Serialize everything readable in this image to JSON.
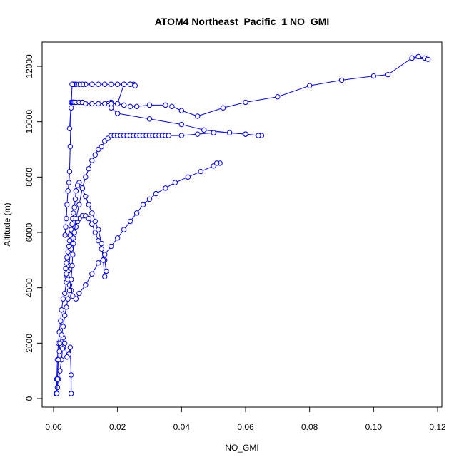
{
  "chart_data": {
    "type": "line",
    "title": "ATOM4 Northeast_Pacific_1 NO_GMI",
    "xlabel": "NO_GMI",
    "ylabel": "Altitude (m)",
    "xlim": [
      0,
      0.12
    ],
    "ylim": [
      0,
      12500
    ],
    "x_ticks": [
      0.0,
      0.02,
      0.04,
      0.06,
      0.08,
      0.1,
      0.12
    ],
    "x_tick_labels": [
      "0.00",
      "0.02",
      "0.04",
      "0.06",
      "0.08",
      "0.10",
      "0.12"
    ],
    "y_ticks": [
      0,
      2000,
      4000,
      6000,
      8000,
      10000,
      12000
    ],
    "y_tick_labels": [
      "0",
      "2000",
      "4000",
      "6000",
      "8000",
      "10000",
      "12000"
    ],
    "grid": false,
    "legend": "none",
    "marker": "open-circle",
    "series_color": "#0000ff",
    "series": [
      {
        "x": [
          0.0055,
          0.0055,
          0.0055,
          0.0052,
          0.0048,
          0.0042,
          0.0035,
          0.003,
          0.0028,
          0.0025,
          0.002,
          0.0015,
          0.0012,
          0.001,
          0.0008,
          0.001,
          0.0012,
          0.0015,
          0.0018,
          0.0022,
          0.0025,
          0.003,
          0.0035,
          0.004,
          0.0042,
          0.0045,
          0.0048,
          0.0052,
          0.0055,
          0.006,
          0.0062,
          0.0065,
          0.007,
          0.0075,
          0.008,
          0.009,
          0.01,
          0.011,
          0.012,
          0.013,
          0.014,
          0.015,
          0.016,
          0.0165,
          0.016,
          0.0155,
          0.015,
          0.014,
          0.013,
          0.012,
          0.011,
          0.01,
          0.009,
          0.008,
          0.0075,
          0.007,
          0.0068,
          0.0065,
          0.0062,
          0.006,
          0.0058,
          0.0055,
          0.0052,
          0.005,
          0.0048,
          0.0045,
          0.0042,
          0.004,
          0.0038,
          0.004,
          0.0045,
          0.005,
          0.0055,
          0.006,
          0.007,
          0.008,
          0.01,
          0.012,
          0.014,
          0.016,
          0.018,
          0.02,
          0.022,
          0.024,
          0.026,
          0.028,
          0.03,
          0.032,
          0.035,
          0.038,
          0.042,
          0.046,
          0.05,
          0.052,
          0.051
        ],
        "y": [
          180,
          180,
          850,
          1850,
          1600,
          1500,
          2000,
          2200,
          1800,
          1400,
          1000,
          700,
          400,
          200,
          180,
          700,
          1400,
          2000,
          2400,
          2800,
          3200,
          3600,
          3800,
          4200,
          4400,
          4600,
          4800,
          5200,
          5400,
          5600,
          5800,
          6000,
          6200,
          6400,
          6500,
          6600,
          6600,
          6500,
          6300,
          6000,
          5700,
          5400,
          5000,
          4600,
          4400,
          5000,
          5600,
          6100,
          6400,
          6700,
          7000,
          7300,
          7600,
          7800,
          7700,
          7500,
          7200,
          6900,
          6700,
          6500,
          6300,
          6100,
          5900,
          5700,
          5500,
          5300,
          5100,
          4900,
          4700,
          4500,
          4300,
          4100,
          3900,
          3700,
          3600,
          3800,
          4100,
          4500,
          4900,
          5200,
          5500,
          5800,
          6100,
          6400,
          6700,
          7000,
          7200,
          7400,
          7600,
          7800,
          8000,
          8200,
          8400,
          8500,
          8500
        ]
      },
      {
        "x": [
          0.001,
          0.0012,
          0.0015,
          0.0018,
          0.002,
          0.0025,
          0.003,
          0.0035,
          0.004,
          0.0045,
          0.005,
          0.0055,
          0.0058,
          0.006,
          0.0062,
          0.0065,
          0.007,
          0.008,
          0.009,
          0.01,
          0.011,
          0.012,
          0.013,
          0.014,
          0.015,
          0.016,
          0.017,
          0.018,
          0.019,
          0.02,
          0.021,
          0.022,
          0.023,
          0.024,
          0.025,
          0.026,
          0.027,
          0.028,
          0.029,
          0.03,
          0.031,
          0.032,
          0.033,
          0.034,
          0.035,
          0.036,
          0.04,
          0.045,
          0.05,
          0.055,
          0.06,
          0.064,
          0.065,
          0.064,
          0.06,
          0.055,
          0.047,
          0.04,
          0.03,
          0.02,
          0.018,
          0.017,
          0.018,
          0.02,
          0.022,
          0.024,
          0.026,
          0.03,
          0.035,
          0.037,
          0.04,
          0.045,
          0.053,
          0.06,
          0.07,
          0.08,
          0.09,
          0.1,
          0.1045,
          0.112,
          0.114,
          0.116,
          0.117,
          0.112
        ],
        "y": [
          180,
          700,
          1400,
          1700,
          2000,
          2300,
          2600,
          3000,
          3300,
          3600,
          3900,
          4300,
          4800,
          5200,
          5600,
          6000,
          6500,
          7000,
          7600,
          8000,
          8300,
          8600,
          8800,
          9000,
          9100,
          9300,
          9400,
          9500,
          9500,
          9500,
          9500,
          9500,
          9500,
          9500,
          9500,
          9500,
          9500,
          9500,
          9500,
          9500,
          9500,
          9500,
          9500,
          9500,
          9500,
          9500,
          9500,
          9550,
          9600,
          9600,
          9550,
          9500,
          9500,
          9500,
          9550,
          9600,
          9700,
          9900,
          10100,
          10300,
          10500,
          10650,
          10700,
          10650,
          10600,
          10550,
          10550,
          10600,
          10600,
          10550,
          10400,
          10200,
          10500,
          10700,
          10900,
          11300,
          11500,
          11650,
          11700,
          12300,
          12350,
          12300,
          12250,
          12300
        ]
      },
      {
        "x": [
          0.005,
          0.0055,
          0.0058,
          0.006,
          0.0062,
          0.0065,
          0.007,
          0.008,
          0.009,
          0.01,
          0.012,
          0.014,
          0.016,
          0.018,
          0.02,
          0.022,
          0.024,
          0.025,
          0.0255,
          0.024,
          0.022,
          0.02,
          0.018,
          0.016,
          0.014,
          0.012,
          0.01,
          0.009,
          0.008,
          0.007,
          0.0065,
          0.006,
          0.0058,
          0.0055,
          0.0052,
          0.005,
          0.0048,
          0.0045,
          0.0042,
          0.004,
          0.0038,
          0.0036
        ],
        "y": [
          9750,
          10700,
          10700,
          10700,
          10700,
          10700,
          10700,
          10700,
          10700,
          10650,
          10650,
          10650,
          10650,
          10650,
          10650,
          11350,
          11350,
          11350,
          11300,
          11350,
          11350,
          11350,
          11350,
          11350,
          11350,
          11350,
          11350,
          11350,
          11350,
          11350,
          11350,
          11350,
          11350,
          10500,
          9100,
          8200,
          7800,
          7500,
          7000,
          6500,
          6200,
          5900
        ]
      }
    ]
  }
}
